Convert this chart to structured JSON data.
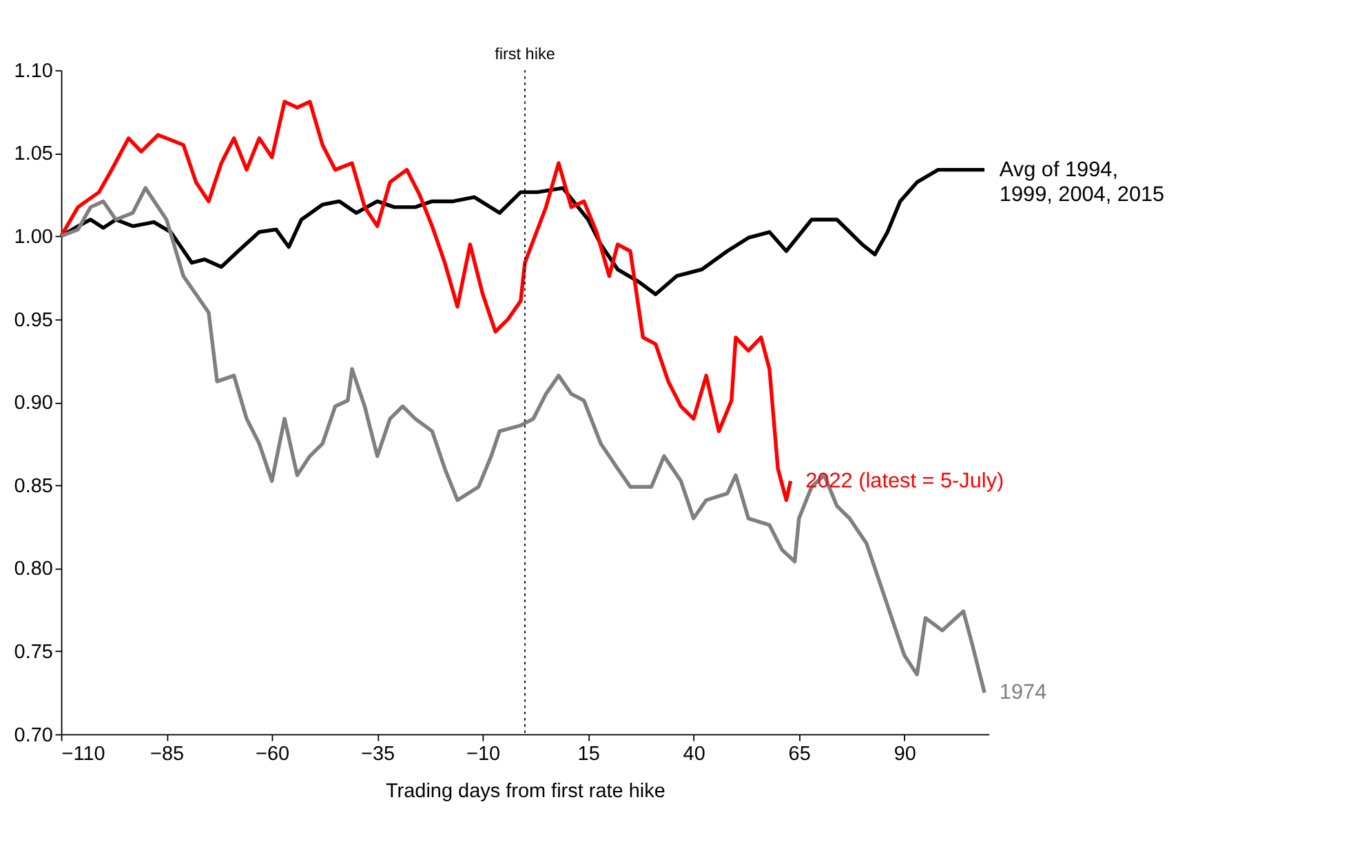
{
  "chart_data": {
    "type": "line",
    "xlabel": "Trading days from first rate hike",
    "xlim": [
      -110,
      110
    ],
    "xticks": [
      -110,
      -85,
      -60,
      -35,
      -10,
      15,
      40,
      65,
      90
    ],
    "ylim": [
      0.7,
      1.1
    ],
    "yticks": [
      {
        "value": 0.7,
        "label": "0.70"
      },
      {
        "value": 0.75,
        "label": "0.75"
      },
      {
        "value": 0.8,
        "label": "0.80"
      },
      {
        "value": 0.85,
        "label": "0.85"
      },
      {
        "value": 0.9,
        "label": "0.90"
      },
      {
        "value": 0.95,
        "label": "0.95"
      },
      {
        "value": 1.0,
        "label": "1.00"
      },
      {
        "value": 1.05,
        "label": "1.05"
      },
      {
        "value": 1.1,
        "label": "1.10"
      }
    ],
    "grid": false,
    "legend": false,
    "marker": "none",
    "line_style": "solid",
    "ref_lines": [
      {
        "axis": "x",
        "value": 0,
        "label": "first hike",
        "color": "#000000",
        "line_style": "dotted"
      }
    ],
    "series": [
      {
        "name": "Avg of 1994,\n1999, 2004, 2015",
        "color": "#000000",
        "x": [
          -110,
          -106,
          -103,
          -100,
          -97,
          -93,
          -88,
          -84,
          -79,
          -76,
          -72,
          -68,
          -63,
          -59,
          -56,
          -53,
          -48,
          -44,
          -40,
          -35,
          -31,
          -26,
          -22,
          -17,
          -12,
          -6,
          -1,
          3,
          9,
          15,
          18,
          22,
          27,
          31,
          36,
          42,
          48,
          53,
          58,
          62,
          68,
          74,
          77,
          80,
          83,
          86,
          89,
          93,
          98,
          104,
          109
        ],
        "values": [
          1.0,
          1.006,
          1.01,
          1.005,
          1.01,
          1.006,
          1.0085,
          1.0025,
          0.984,
          0.986,
          0.9815,
          0.991,
          1.0025,
          1.004,
          0.9935,
          1.01,
          1.019,
          1.021,
          1.014,
          1.021,
          1.0175,
          1.0175,
          1.021,
          1.021,
          1.0235,
          1.014,
          1.0265,
          1.0265,
          1.029,
          1.01,
          0.995,
          0.98,
          0.9725,
          0.965,
          0.976,
          0.98,
          0.991,
          0.999,
          1.0025,
          0.991,
          1.01,
          1.01,
          1.0025,
          0.995,
          0.989,
          1.0025,
          1.021,
          1.0325,
          1.04,
          1.04,
          1.04
        ]
      },
      {
        "name": "2022 (latest = 5-July)",
        "color": "#ff0000",
        "x": [
          -110,
          -106,
          -101,
          -98,
          -94,
          -91,
          -87,
          -81,
          -78,
          -75,
          -72,
          -69,
          -66,
          -63,
          -60,
          -57,
          -54,
          -51,
          -48,
          -45,
          -41,
          -38,
          -35,
          -32,
          -28,
          -25,
          -22,
          -19,
          -16,
          -13,
          -10,
          -7,
          -4,
          -1,
          0,
          5,
          8,
          11,
          14,
          17,
          20,
          22,
          25,
          28,
          31,
          34,
          37,
          40,
          43,
          46,
          49,
          50,
          53,
          56,
          58,
          60,
          62,
          63
        ],
        "values": [
          1.0,
          1.0175,
          1.0265,
          1.04,
          1.059,
          1.051,
          1.061,
          1.055,
          1.0325,
          1.021,
          1.044,
          1.059,
          1.04,
          1.059,
          1.0475,
          1.081,
          1.0775,
          1.081,
          1.055,
          1.04,
          1.044,
          1.0175,
          1.006,
          1.0325,
          1.04,
          1.025,
          1.006,
          0.984,
          0.9575,
          0.995,
          0.965,
          0.9425,
          0.95,
          0.961,
          0.984,
          1.0175,
          1.044,
          1.0175,
          1.021,
          1.0025,
          0.976,
          0.995,
          0.991,
          0.939,
          0.935,
          0.9125,
          0.8975,
          0.89,
          0.916,
          0.8825,
          0.901,
          0.939,
          0.931,
          0.939,
          0.92,
          0.86,
          0.841,
          0.8525
        ]
      },
      {
        "name": "1974",
        "color": "#7f7f7f",
        "x": [
          -110,
          -106,
          -103,
          -100,
          -97,
          -93,
          -90,
          -85,
          -81,
          -78,
          -75,
          -73,
          -69,
          -66,
          -63,
          -60,
          -57,
          -54,
          -51,
          -48,
          -45,
          -42,
          -41,
          -38,
          -35,
          -32,
          -29,
          -26,
          -22,
          -19,
          -16,
          -11,
          -8,
          -6,
          -1,
          2,
          5,
          8,
          11,
          14,
          18,
          22,
          25,
          30,
          33,
          37,
          40,
          43,
          48,
          50,
          53,
          58,
          61,
          64,
          65,
          68,
          71,
          74,
          77,
          81,
          84,
          87,
          90,
          93,
          95,
          99,
          104,
          106,
          109
        ],
        "values": [
          1.0,
          1.004,
          1.0175,
          1.021,
          1.01,
          1.014,
          1.029,
          1.01,
          0.976,
          0.965,
          0.954,
          0.9125,
          0.916,
          0.89,
          0.875,
          0.8525,
          0.89,
          0.856,
          0.8675,
          0.875,
          0.8975,
          0.901,
          0.92,
          0.8975,
          0.8675,
          0.89,
          0.8975,
          0.89,
          0.8825,
          0.86,
          0.841,
          0.849,
          0.8675,
          0.8825,
          0.886,
          0.89,
          0.905,
          0.916,
          0.905,
          0.901,
          0.875,
          0.86,
          0.849,
          0.849,
          0.8675,
          0.8525,
          0.83,
          0.841,
          0.845,
          0.856,
          0.83,
          0.826,
          0.811,
          0.804,
          0.83,
          0.849,
          0.856,
          0.8375,
          0.83,
          0.815,
          0.7925,
          0.77,
          0.7475,
          0.736,
          0.77,
          0.7625,
          0.774,
          0.755,
          0.725
        ]
      }
    ]
  }
}
